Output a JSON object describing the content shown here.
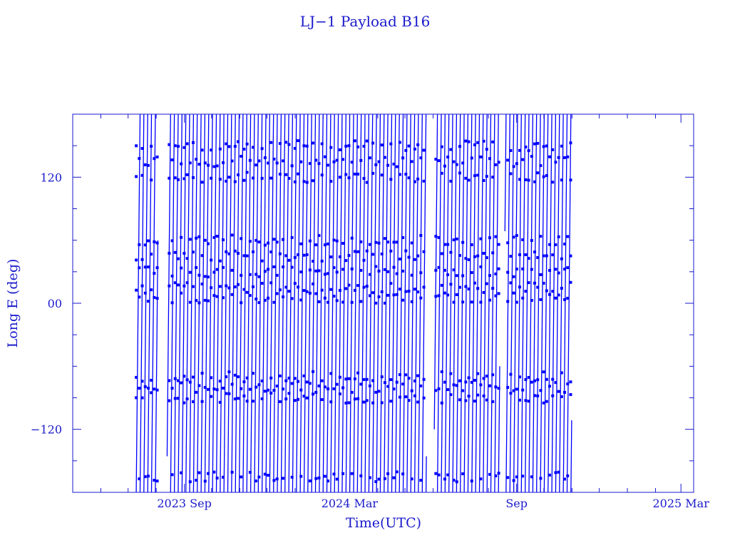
{
  "chart_data": {
    "type": "line",
    "title": "LJ−1 Payload B16",
    "xlabel": "Time(UTC)",
    "ylabel": "Long E (deg)",
    "xlim": [
      "2023-05-01",
      "2025-03-15"
    ],
    "ylim": [
      -180,
      180
    ],
    "x_ticks": [
      {
        "date": "2023-09-01",
        "label": "2023 Sep"
      },
      {
        "date": "2024-03-01",
        "label": "2024 Mar"
      },
      {
        "date": "2024-09-01",
        "label": "Sep"
      },
      {
        "date": "2025-03-01",
        "label": "2025 Mar"
      }
    ],
    "y_ticks": [
      {
        "value": 120,
        "label": "120"
      },
      {
        "value": 0,
        "label": "00"
      },
      {
        "value": -120,
        "label": "−120"
      }
    ],
    "grid": false,
    "legend": "none",
    "colors": {
      "series": "#0000ff",
      "axis": "#1a1acc"
    },
    "series": [
      {
        "x_start": "2023-07-10",
        "x_end": "2024-11-01",
        "gaps": [
          [
            "2023-08-03",
            "2023-08-13"
          ],
          [
            "2024-05-25",
            "2024-06-02"
          ],
          [
            "2024-08-14",
            "2024-08-19"
          ]
        ],
        "marker": "square",
        "description_values": "longitude sweeps repeatedly from -180 to 180 deg"
      }
    ]
  }
}
